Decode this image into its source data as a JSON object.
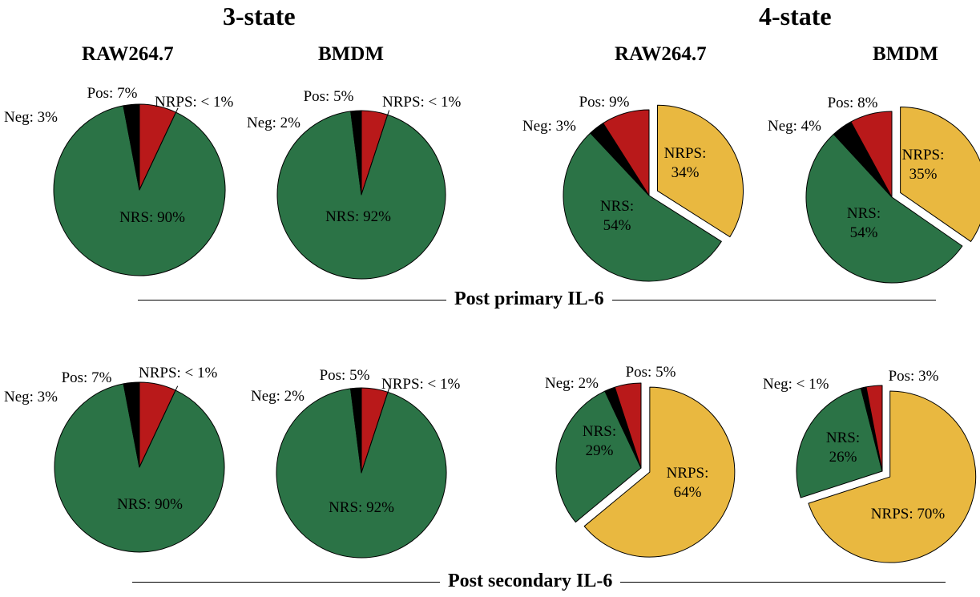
{
  "colors": {
    "Pos": "#b9191a",
    "Neg": "#000000",
    "NRPS": "#e9b840",
    "NRS": "#2b7346"
  },
  "headings": {
    "left": "3-state",
    "right": "4-state"
  },
  "sections": {
    "top": "Post primary IL-6",
    "bottom": "Post secondary IL-6"
  },
  "columns": [
    "RAW264.7",
    "BMDM",
    "RAW264.7",
    "BMDM"
  ],
  "chart_data": [
    {
      "type": "pie",
      "model": "3-state",
      "cell": "RAW264.7",
      "condition": "Post primary IL-6",
      "slices": [
        {
          "label": "Pos",
          "value": 7,
          "text": "Pos: 7%"
        },
        {
          "label": "NRPS",
          "value": 0,
          "text": "NRPS: < 1%"
        },
        {
          "label": "NRS",
          "value": 90,
          "text": "NRS: 90%"
        },
        {
          "label": "Neg",
          "value": 3,
          "text": "Neg: 3%"
        }
      ]
    },
    {
      "type": "pie",
      "model": "3-state",
      "cell": "BMDM",
      "condition": "Post primary IL-6",
      "slices": [
        {
          "label": "Pos",
          "value": 5,
          "text": "Pos: 5%"
        },
        {
          "label": "NRPS",
          "value": 0,
          "text": "NRPS: < 1%"
        },
        {
          "label": "NRS",
          "value": 92,
          "text": "NRS: 92%"
        },
        {
          "label": "Neg",
          "value": 2,
          "text": "Neg: 2%"
        }
      ]
    },
    {
      "type": "pie",
      "model": "4-state",
      "cell": "RAW264.7",
      "condition": "Post primary IL-6",
      "slices": [
        {
          "label": "NRPS",
          "value": 34,
          "text": "NRPS:\n34%"
        },
        {
          "label": "NRS",
          "value": 54,
          "text": "NRS:\n54%"
        },
        {
          "label": "Neg",
          "value": 3,
          "text": "Neg: 3%"
        },
        {
          "label": "Pos",
          "value": 9,
          "text": "Pos: 9%"
        }
      ]
    },
    {
      "type": "pie",
      "model": "4-state",
      "cell": "BMDM",
      "condition": "Post primary IL-6",
      "slices": [
        {
          "label": "NRPS",
          "value": 35,
          "text": "NRPS:\n35%"
        },
        {
          "label": "NRS",
          "value": 54,
          "text": "NRS:\n54%"
        },
        {
          "label": "Neg",
          "value": 4,
          "text": "Neg: 4%"
        },
        {
          "label": "Pos",
          "value": 8,
          "text": "Pos: 8%"
        }
      ]
    },
    {
      "type": "pie",
      "model": "3-state",
      "cell": "RAW264.7",
      "condition": "Post secondary IL-6",
      "slices": [
        {
          "label": "Pos",
          "value": 7,
          "text": "Pos: 7%"
        },
        {
          "label": "NRPS",
          "value": 0,
          "text": "NRPS: < 1%"
        },
        {
          "label": "NRS",
          "value": 90,
          "text": "NRS: 90%"
        },
        {
          "label": "Neg",
          "value": 3,
          "text": "Neg: 3%"
        }
      ]
    },
    {
      "type": "pie",
      "model": "3-state",
      "cell": "BMDM",
      "condition": "Post secondary IL-6",
      "slices": [
        {
          "label": "Pos",
          "value": 5,
          "text": "Pos: 5%"
        },
        {
          "label": "NRPS",
          "value": 0,
          "text": "NRPS: < 1%"
        },
        {
          "label": "NRS",
          "value": 92,
          "text": "NRS: 92%"
        },
        {
          "label": "Neg",
          "value": 2,
          "text": "Neg: 2%"
        }
      ]
    },
    {
      "type": "pie",
      "model": "4-state",
      "cell": "RAW264.7",
      "condition": "Post secondary IL-6",
      "slices": [
        {
          "label": "NRPS",
          "value": 64,
          "text": "NRPS:\n64%"
        },
        {
          "label": "NRS",
          "value": 29,
          "text": "NRS:\n29%"
        },
        {
          "label": "Neg",
          "value": 2,
          "text": "Neg: 2%"
        },
        {
          "label": "Pos",
          "value": 5,
          "text": "Pos: 5%"
        }
      ]
    },
    {
      "type": "pie",
      "model": "4-state",
      "cell": "BMDM",
      "condition": "Post secondary IL-6",
      "slices": [
        {
          "label": "NRPS",
          "value": 70,
          "text": "NRPS: 70%"
        },
        {
          "label": "NRS",
          "value": 26,
          "text": "NRS:\n26%"
        },
        {
          "label": "Neg",
          "value": 1,
          "text": "Neg: < 1%"
        },
        {
          "label": "Pos",
          "value": 3,
          "text": "Pos: 3%"
        }
      ]
    }
  ]
}
